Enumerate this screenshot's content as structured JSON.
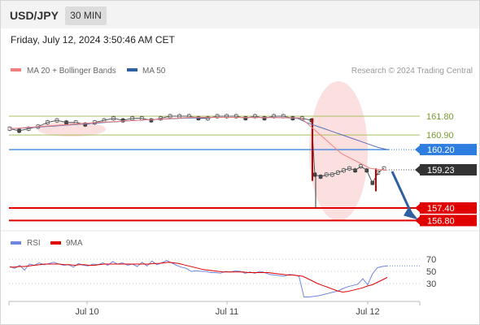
{
  "header": {
    "symbol": "USD/JPY",
    "timeframe_button": "30 MIN",
    "datetime": "Friday, July 12, 2024 3:50:46 AM CET"
  },
  "legend": {
    "ma20_label": "MA 20 + Bollinger Bands",
    "ma20_color": "#f08080",
    "ma50_label": "MA 50",
    "ma50_color": "#2e5f9e"
  },
  "attribution": "Research © 2024 Trading Central",
  "rsi_legend": {
    "rsi_label": "RSI",
    "rsi_color": "#6f86e0",
    "ma_label": "9MA",
    "ma_color": "#e00000"
  },
  "chart_data": [
    {
      "type": "candlestick",
      "title": "",
      "x_tick_labels": [
        "Jul 10",
        "Jul 11",
        "Jul 12"
      ],
      "ylim": [
        156.6,
        162.0
      ],
      "levels": [
        {
          "value": 161.8,
          "label": "161.80",
          "kind": "resistance",
          "color": "#a8c060"
        },
        {
          "value": 160.9,
          "label": "160.90",
          "kind": "resistance",
          "color": "#a8c060"
        },
        {
          "value": 160.2,
          "label": "160.20",
          "kind": "pivot",
          "color": "#2e7de1"
        },
        {
          "value": 159.23,
          "label": "159.23",
          "kind": "last-price",
          "color": "#333333"
        },
        {
          "value": 157.4,
          "label": "157.40",
          "kind": "target",
          "color": "#e00000"
        },
        {
          "value": 156.8,
          "label": "156.80",
          "kind": "target",
          "color": "#e00000"
        }
      ],
      "price_series": [
        161.2,
        161.1,
        161.2,
        161.3,
        161.5,
        161.6,
        161.5,
        161.5,
        161.4,
        161.5,
        161.6,
        161.7,
        161.6,
        161.7,
        161.7,
        161.6,
        161.7,
        161.8,
        161.8,
        161.8,
        161.7,
        161.7,
        161.8,
        161.8,
        161.8,
        161.7,
        161.8,
        161.7,
        161.8,
        161.8,
        161.7,
        161.7,
        161.6,
        159.0,
        158.9,
        159.0,
        159.0,
        159.1,
        159.2,
        159.3,
        159.2,
        159.4,
        159.2,
        158.6,
        159.1,
        159.3
      ],
      "ma50_series": [
        161.2,
        161.22,
        161.24,
        161.27,
        161.3,
        161.33,
        161.36,
        161.39,
        161.42,
        161.45,
        161.48,
        161.51,
        161.54,
        161.57,
        161.6,
        161.62,
        161.64,
        161.66,
        161.68,
        161.7,
        161.71,
        161.72,
        161.73,
        161.74,
        161.74,
        161.74,
        161.74,
        161.74,
        161.74,
        161.74,
        161.73,
        161.72,
        161.7,
        161.5,
        161.35,
        161.2,
        161.05,
        160.9,
        160.75,
        160.6,
        160.45,
        160.3,
        160.2
      ],
      "forecast": {
        "direction": "down",
        "from": 159.23,
        "to": 156.8
      }
    },
    {
      "type": "line",
      "title": "",
      "ylim": [
        0,
        100
      ],
      "y_ticks": [
        70,
        50,
        30
      ],
      "series": [
        {
          "name": "RSI",
          "values": [
            58,
            55,
            60,
            52,
            62,
            60,
            64,
            61,
            63,
            65,
            62,
            60,
            61,
            57,
            63,
            60,
            59,
            62,
            61,
            64,
            60,
            66,
            62,
            64,
            60,
            62,
            58,
            65,
            59,
            67,
            61,
            64,
            68,
            64,
            60,
            57,
            55,
            50,
            51,
            50,
            50,
            48,
            48,
            47,
            50,
            49,
            51,
            50,
            47,
            49,
            47,
            50,
            48,
            45,
            44,
            43,
            42,
            45,
            44,
            42,
            8,
            8,
            9,
            10,
            12,
            14,
            16,
            18,
            22,
            25,
            27,
            29,
            38,
            28,
            46,
            56,
            58,
            59
          ]
        },
        {
          "name": "9MA",
          "values": [
            57,
            57,
            58,
            58,
            59,
            60,
            61,
            62,
            62,
            62,
            62,
            61,
            61,
            60,
            61,
            61,
            60,
            60,
            61,
            62,
            62,
            62,
            62,
            62,
            62,
            62,
            62,
            62,
            62,
            63,
            63,
            64,
            65,
            64,
            63,
            61,
            59,
            57,
            55,
            53,
            52,
            51,
            50,
            49,
            49,
            49,
            49,
            49,
            48,
            48,
            48,
            48,
            48,
            47,
            46,
            45,
            44,
            44,
            43,
            42,
            38,
            34,
            30,
            27,
            24,
            21,
            18,
            16,
            17,
            19,
            21,
            23,
            26,
            28,
            32,
            36,
            40
          ]
        }
      ]
    }
  ]
}
